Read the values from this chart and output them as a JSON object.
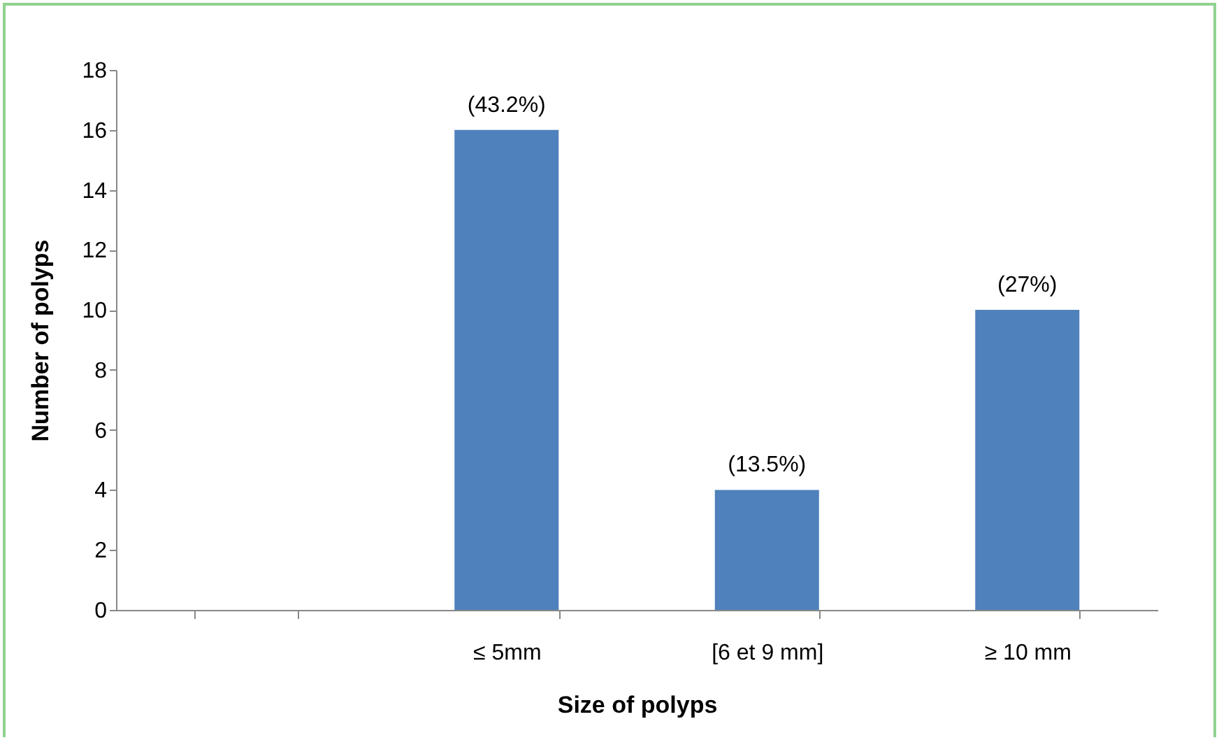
{
  "chart_data": {
    "type": "bar",
    "xlabel": "Size of polyps",
    "ylabel": "Number of polyps",
    "categories": [
      null,
      "≤ 5mm",
      "[6 et 9 mm]",
      "≥ 10 mm"
    ],
    "values": [
      null,
      16,
      4,
      10
    ],
    "annotations": [
      {
        "text": "(43.2%)",
        "x": "≤ 5mm",
        "y": 16
      },
      {
        "text": "(13.5%)",
        "x": "[6 et 9 mm]",
        "y": 4
      },
      {
        "text": "(27%)",
        "x": "≥ 10 mm",
        "y": 10
      }
    ],
    "color": "#4f81bd",
    "ylim": [
      0,
      18
    ],
    "yticks": [
      0,
      2,
      4,
      6,
      8,
      10,
      12,
      14,
      16,
      18
    ],
    "grid": false
  }
}
